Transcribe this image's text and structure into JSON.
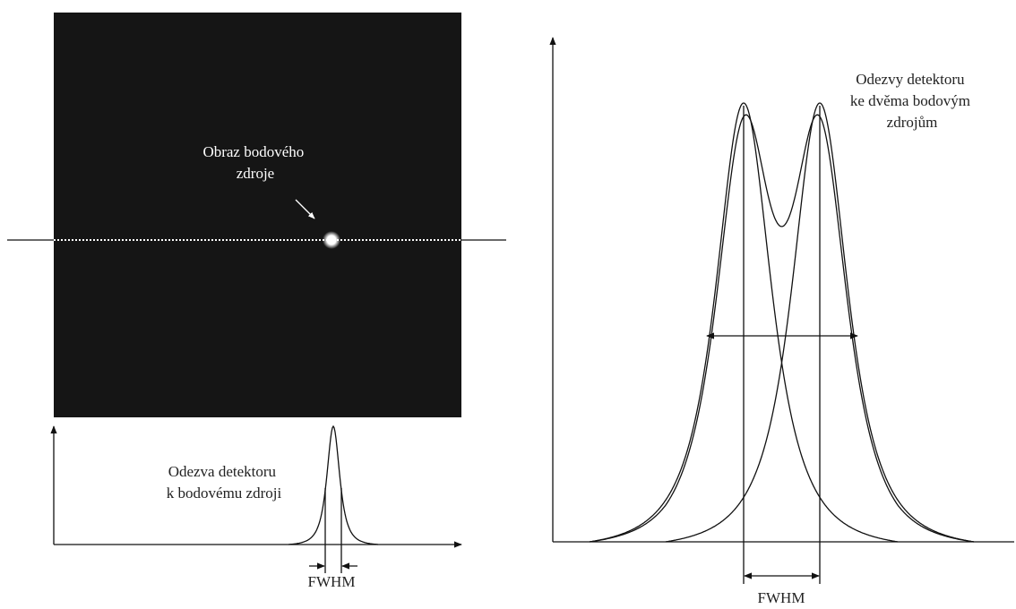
{
  "left": {
    "image_label": [
      "Obraz bodového",
      "zdroje"
    ],
    "response_label": [
      "Odezva detektoru",
      "k bodovému zdroji"
    ],
    "fwhm_label": "FWHM"
  },
  "right": {
    "response_label": [
      "Odezvy detektoru",
      "ke dvěma bodovým",
      "zdrojům"
    ],
    "fwhm_label": "FWHM"
  }
}
